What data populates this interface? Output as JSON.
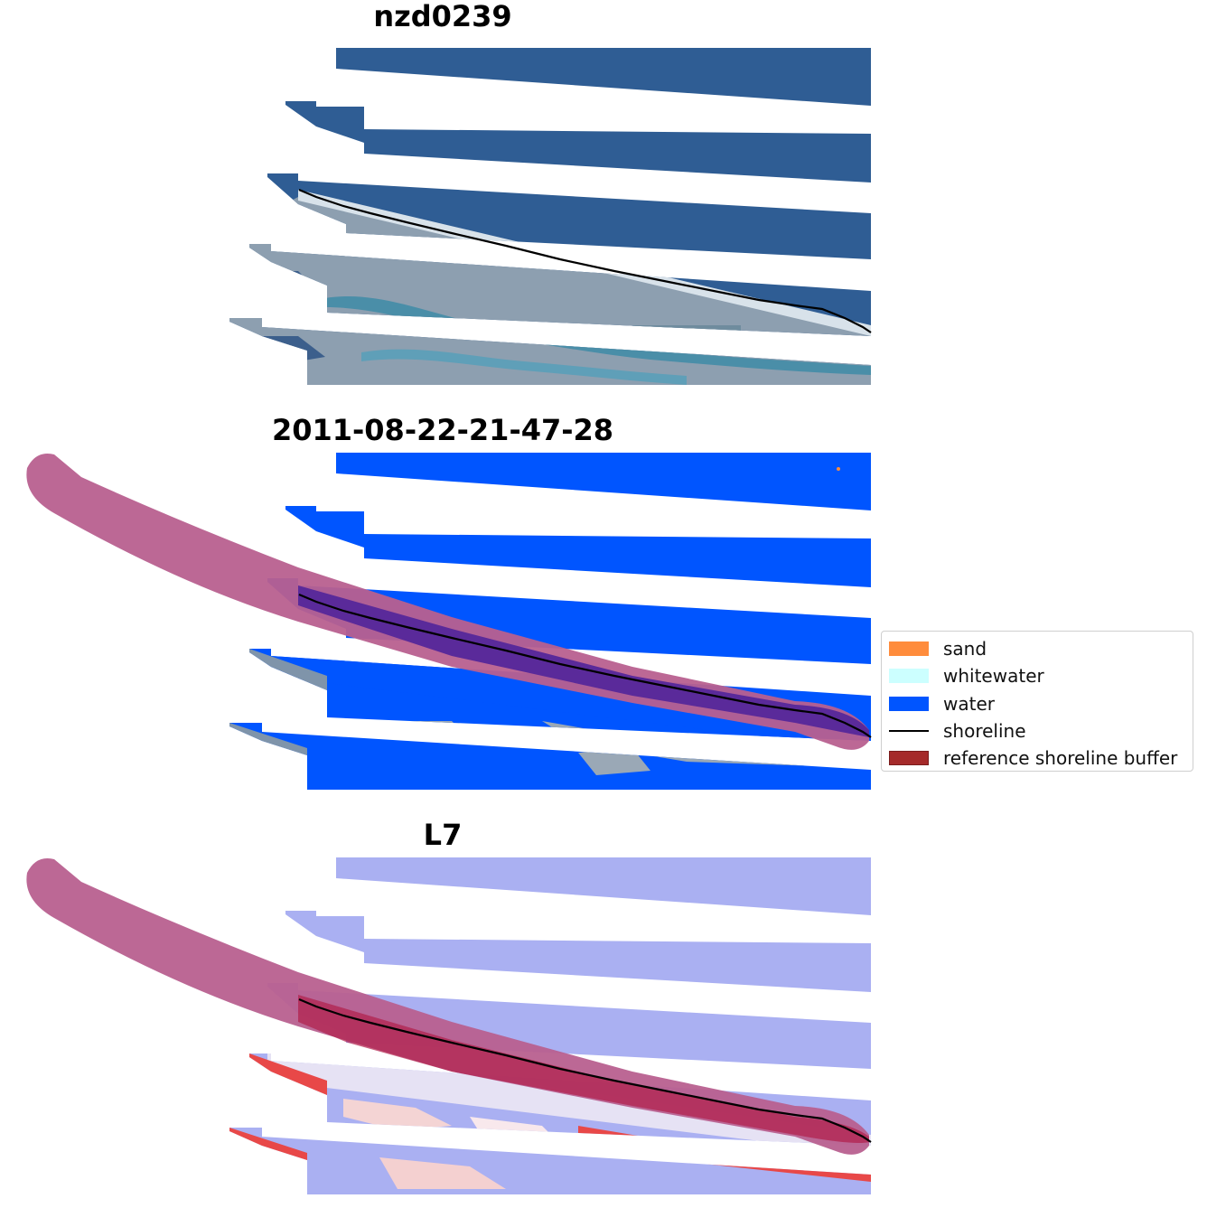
{
  "titles": {
    "site": "nzd0239",
    "date": "2011-08-22-21-47-28",
    "satellite": "L7"
  },
  "legend": {
    "items": [
      {
        "label": "sand",
        "color": "#ff8c3c",
        "kind": "patch"
      },
      {
        "label": "whitewater",
        "color": "#ccffff",
        "kind": "patch"
      },
      {
        "label": "water",
        "color": "#0055ff",
        "kind": "patch"
      },
      {
        "label": "shoreline",
        "color": "#000000",
        "kind": "line"
      },
      {
        "label": "reference shoreline buffer",
        "color": "#a52a2a",
        "kind": "patch"
      }
    ]
  },
  "colors": {
    "sea_rgb": "#2f5d94",
    "water_class": "#0055ff",
    "land_rgb": "#8fa3b5",
    "buffer": "#b8608f",
    "buffer_over_water": "#5a2a9a",
    "index_water": "#aab0f2",
    "index_land": "#e84848"
  }
}
